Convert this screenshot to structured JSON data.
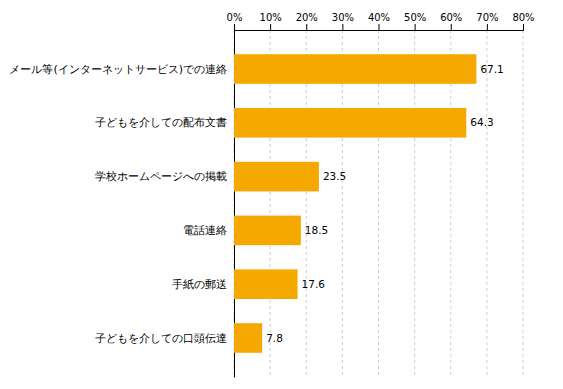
{
  "chart_data": {
    "type": "bar",
    "orientation": "horizontal",
    "categories": [
      "子どもを介しての口頭伝達",
      "手紙の郵送",
      "電話連絡",
      "学校ホームページへの掲載",
      "子どもを介しての配布文書",
      "メール等(インターネットサービス)での連絡"
    ],
    "values": [
      7.8,
      17.6,
      18.5,
      23.5,
      64.3,
      67.1
    ],
    "color": "#F5A800",
    "xlim": [
      0,
      80
    ],
    "xticks": [
      {
        "value": 0,
        "label": "0%"
      },
      {
        "value": 10,
        "label": "10%"
      },
      {
        "value": 20,
        "label": "20%"
      },
      {
        "value": 30,
        "label": "30%"
      },
      {
        "value": 40,
        "label": "40%"
      },
      {
        "value": 50,
        "label": "50%"
      },
      {
        "value": 60,
        "label": "60%"
      },
      {
        "value": 70,
        "label": "70%"
      },
      {
        "value": 80,
        "label": "80%"
      }
    ],
    "grid": true,
    "data_labels": true
  }
}
